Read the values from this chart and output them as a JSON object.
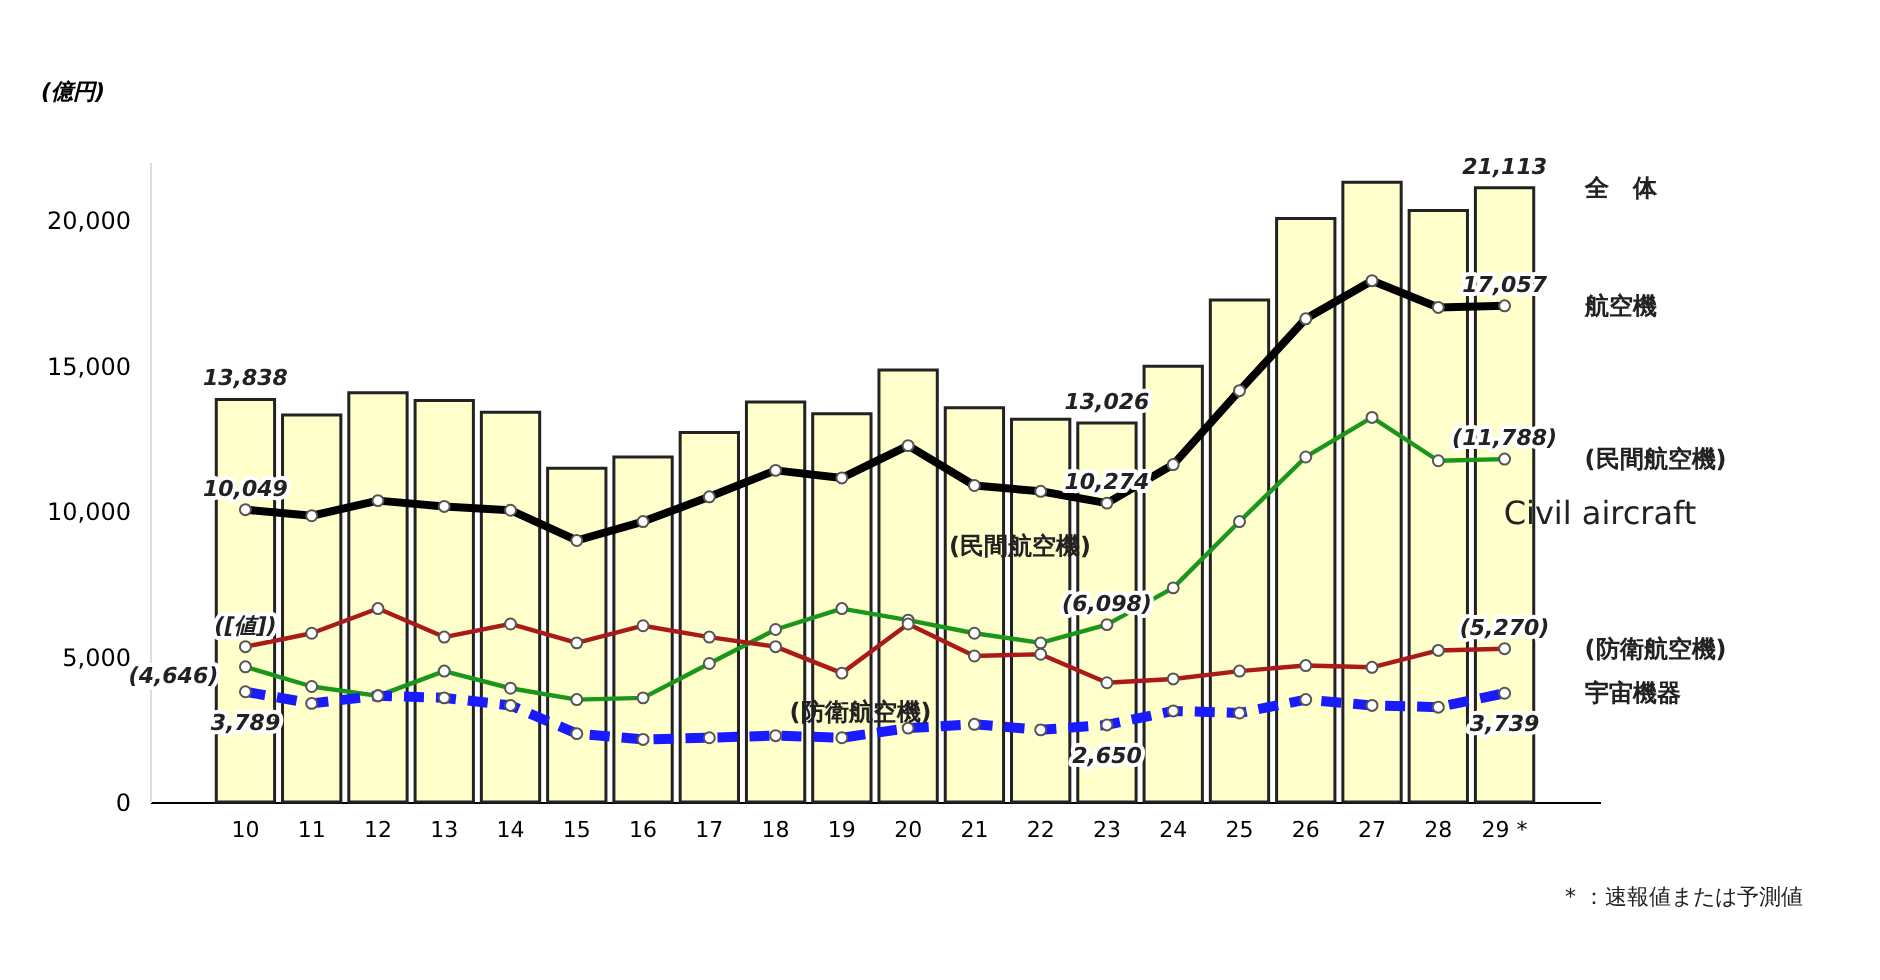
{
  "chart_data": {
    "type": "bar",
    "ylabel": "(億円)",
    "categories": [
      "10",
      "11",
      "12",
      "13",
      "14",
      "15",
      "16",
      "17",
      "18",
      "19",
      "20",
      "21",
      "22",
      "23",
      "24",
      "25",
      "26",
      "27",
      "28",
      "29 *"
    ],
    "series": [
      {
        "name": "全　体",
        "type": "bar",
        "color": "#ffffcc",
        "values": [
          13838,
          13300,
          14070,
          13800,
          13400,
          11470,
          11860,
          12700,
          13750,
          13350,
          14850,
          13550,
          13160,
          13026,
          14980,
          17260,
          20060,
          21300,
          20330,
          21113
        ],
        "value_labels": [
          "13,838",
          null,
          null,
          null,
          null,
          null,
          null,
          null,
          null,
          null,
          null,
          null,
          null,
          "13,026",
          null,
          null,
          null,
          null,
          null,
          "21,113"
        ]
      },
      {
        "name": "航空機",
        "type": "line",
        "color": "#000000",
        "values": [
          10049,
          9840,
          10360,
          10160,
          10030,
          8990,
          9640,
          10490,
          11400,
          11140,
          12250,
          10880,
          10680,
          10274,
          11600,
          14140,
          16610,
          17920,
          17000,
          17057
        ],
        "value_labels": [
          "10,049",
          null,
          null,
          null,
          null,
          null,
          null,
          null,
          null,
          null,
          null,
          null,
          null,
          "10,274",
          null,
          null,
          null,
          null,
          null,
          "17,057"
        ]
      },
      {
        "name": "(民間航空機)",
        "type": "line",
        "color": "#1a961a",
        "values": [
          4646,
          3970,
          3650,
          4500,
          3910,
          3520,
          3580,
          4760,
          5930,
          6650,
          6250,
          5800,
          5470,
          6098,
          7360,
          9640,
          11860,
          13220,
          11730,
          11788
        ],
        "value_labels": [
          "(4,646)",
          null,
          null,
          null,
          null,
          null,
          null,
          null,
          null,
          null,
          null,
          null,
          null,
          "(6,098)",
          null,
          null,
          null,
          null,
          null,
          "(11,788)"
        ]
      },
      {
        "name": "(防衛航空機)",
        "type": "line",
        "color": "#aa1a1a",
        "values": [
          5340,
          5800,
          6650,
          5670,
          6120,
          5470,
          6060,
          5670,
          5340,
          4430,
          6120,
          5020,
          5080,
          4100,
          4230,
          4500,
          4690,
          4630,
          5210,
          5270
        ],
        "value_labels": [
          "([値])",
          null,
          null,
          null,
          null,
          null,
          null,
          null,
          null,
          null,
          null,
          null,
          null,
          null,
          null,
          null,
          null,
          null,
          null,
          "(5,270)"
        ]
      },
      {
        "name": "宇宙機器",
        "type": "line",
        "color": "#1a1aff",
        "line_style": "dashed",
        "values": [
          3789,
          3390,
          3650,
          3580,
          3320,
          2350,
          2150,
          2210,
          2280,
          2210,
          2540,
          2670,
          2480,
          2650,
          3130,
          3060,
          3520,
          3320,
          3260,
          3739
        ],
        "value_labels": [
          "3,789",
          null,
          null,
          null,
          null,
          null,
          null,
          null,
          null,
          null,
          null,
          null,
          null,
          "2,650",
          null,
          null,
          null,
          null,
          null,
          "3,739"
        ]
      }
    ],
    "ylim": [
      0,
      22000
    ],
    "yticks": [
      0,
      {
        "value": 5000,
        "label": "5,000"
      },
      {
        "value": 10000,
        "label": "10,000"
      },
      {
        "value": 15000,
        "label": "15,000"
      },
      {
        "value": 20000,
        "label": "20,000"
      }
    ],
    "marker": "circle",
    "line_style": "solid",
    "annotations": [
      "(民間航空機)",
      "(防衛航空機)",
      "Civil aircraft",
      "* ：速報値または予測値"
    ]
  }
}
